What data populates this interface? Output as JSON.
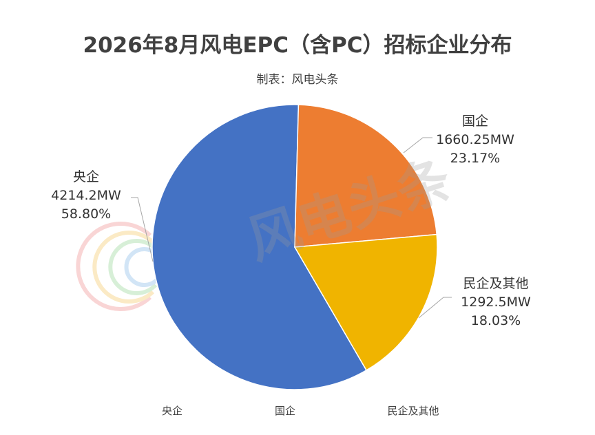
{
  "chart_data": {
    "type": "pie",
    "title": "2026年8月风电EPC（含PC）招标企业分布",
    "subtitle": "制表：风电头条",
    "unit": "MW",
    "categories": [
      "央企",
      "国企",
      "民企及其他"
    ],
    "values": [
      4214.2,
      1660.25,
      1292.5
    ],
    "value_labels": [
      "4214.2MW",
      "1660.25MW",
      "1292.5MW"
    ],
    "percent_labels": [
      "58.80%",
      "23.17%",
      "18.03%"
    ],
    "colors": [
      "#4472C4",
      "#ED7D31",
      "#F0B400"
    ],
    "legend_position": "bottom",
    "watermark": "风电头条"
  }
}
